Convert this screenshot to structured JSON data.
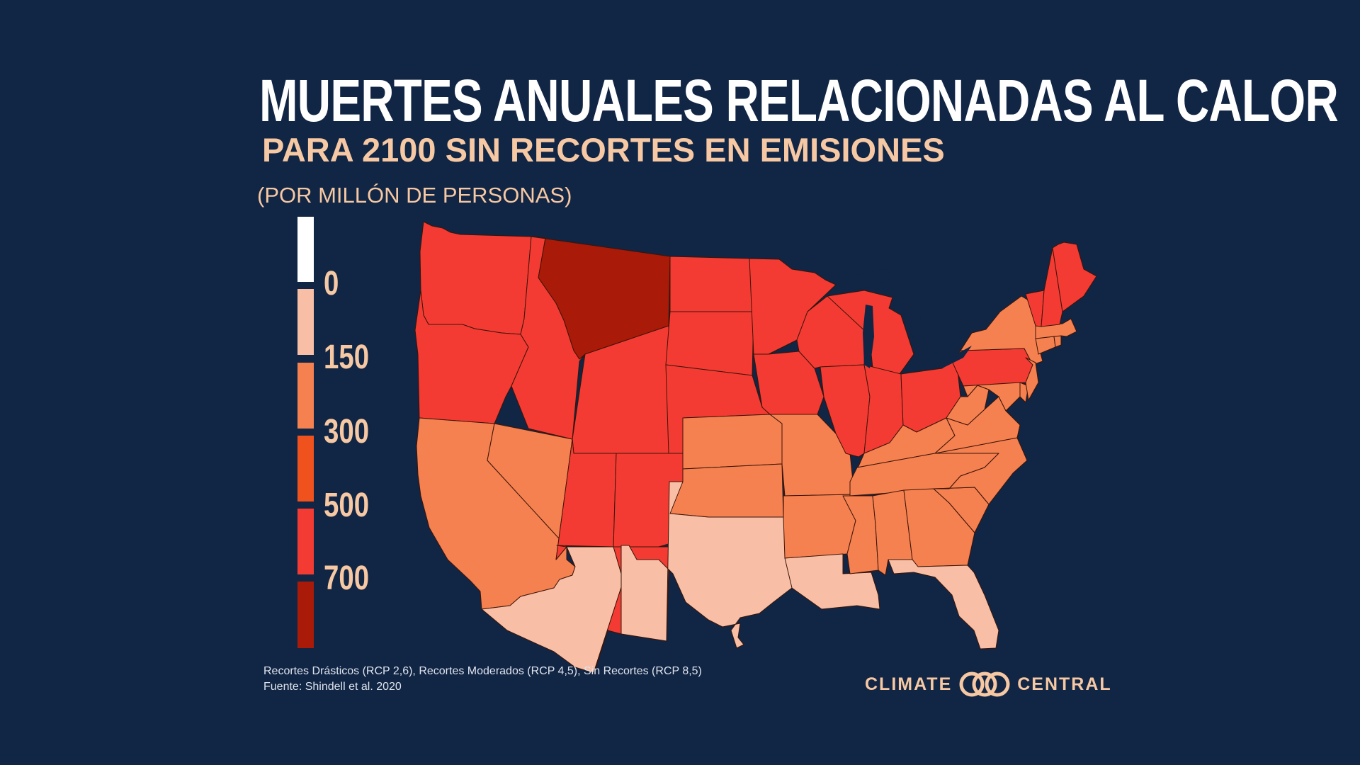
{
  "title": "MUERTES ANUALES RELACIONADAS AL CALOR",
  "subtitle": "PARA 2100 SIN RECORTES EN EMISIONES",
  "units": "(POR MILLÓN DE PERSONAS)",
  "legend": {
    "bins": [
      {
        "label": "",
        "color": "#ffffff"
      },
      {
        "label": "0",
        "color": "#f8bfa6"
      },
      {
        "label": "150",
        "color": "#f58050"
      },
      {
        "label": "300",
        "color": "#f0521e"
      },
      {
        "label": "500",
        "color": "#f43b33"
      },
      {
        "label": "700",
        "color": "#a91a08"
      }
    ]
  },
  "states": [
    {
      "name": "Washington",
      "bin": 4
    },
    {
      "name": "Oregon",
      "bin": 4
    },
    {
      "name": "California",
      "bin": 2
    },
    {
      "name": "Nevada",
      "bin": 2
    },
    {
      "name": "Idaho",
      "bin": 4
    },
    {
      "name": "Montana",
      "bin": 5
    },
    {
      "name": "Wyoming",
      "bin": 4
    },
    {
      "name": "Utah",
      "bin": 4
    },
    {
      "name": "Arizona",
      "bin": 1
    },
    {
      "name": "Colorado",
      "bin": 4
    },
    {
      "name": "New Mexico",
      "bin": 4
    },
    {
      "name": "North Dakota",
      "bin": 4
    },
    {
      "name": "South Dakota",
      "bin": 4
    },
    {
      "name": "Nebraska",
      "bin": 4
    },
    {
      "name": "Kansas",
      "bin": 2
    },
    {
      "name": "Oklahoma",
      "bin": 2
    },
    {
      "name": "Texas",
      "bin": 1
    },
    {
      "name": "Minnesota",
      "bin": 4
    },
    {
      "name": "Iowa",
      "bin": 4
    },
    {
      "name": "Missouri",
      "bin": 2
    },
    {
      "name": "Arkansas",
      "bin": 2
    },
    {
      "name": "Louisiana",
      "bin": 1
    },
    {
      "name": "Wisconsin",
      "bin": 4
    },
    {
      "name": "Illinois",
      "bin": 4
    },
    {
      "name": "Michigan",
      "bin": 4
    },
    {
      "name": "Indiana",
      "bin": 4
    },
    {
      "name": "Ohio",
      "bin": 4
    },
    {
      "name": "Kentucky",
      "bin": 2
    },
    {
      "name": "Tennessee",
      "bin": 2
    },
    {
      "name": "Mississippi",
      "bin": 2
    },
    {
      "name": "Alabama",
      "bin": 2
    },
    {
      "name": "Georgia",
      "bin": 2
    },
    {
      "name": "Florida",
      "bin": 1
    },
    {
      "name": "South Carolina",
      "bin": 2
    },
    {
      "name": "North Carolina",
      "bin": 2
    },
    {
      "name": "Virginia",
      "bin": 2
    },
    {
      "name": "West Virginia",
      "bin": 2
    },
    {
      "name": "Pennsylvania",
      "bin": 4
    },
    {
      "name": "New York",
      "bin": 2
    },
    {
      "name": "Maryland",
      "bin": 2
    },
    {
      "name": "Delaware",
      "bin": 2
    },
    {
      "name": "New Jersey",
      "bin": 2
    },
    {
      "name": "Connecticut",
      "bin": 2
    },
    {
      "name": "Rhode Island",
      "bin": 2
    },
    {
      "name": "Massachusetts",
      "bin": 2
    },
    {
      "name": "Vermont",
      "bin": 4
    },
    {
      "name": "New Hampshire",
      "bin": 4
    },
    {
      "name": "Maine",
      "bin": 4
    }
  ],
  "colors": {
    "background": "#112544",
    "border": "#3a1508"
  },
  "footnote": {
    "line1": "Recortes Drásticos (RCP 2,6), Recortes Moderados (RCP 4,5), Sin Recortes (RCP 8,5)",
    "line2": "Fuente: Shindell et al. 2020"
  },
  "brand": {
    "left": "CLIMATE",
    "right": "CENTRAL",
    "logo_icon": "interlocking-rings-icon"
  }
}
